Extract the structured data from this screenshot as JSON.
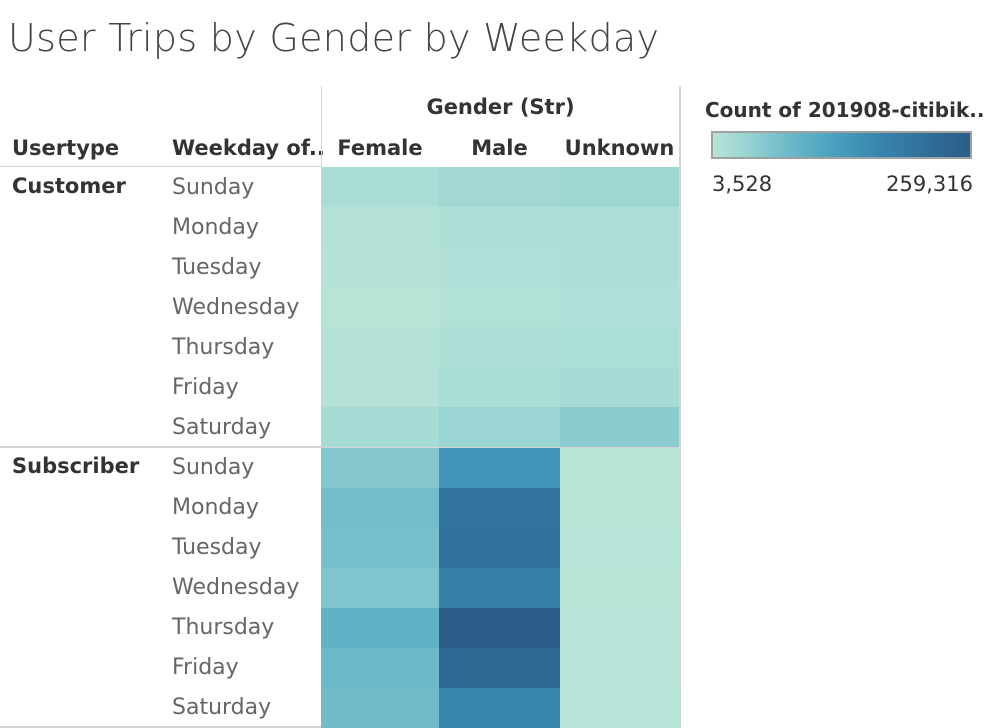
{
  "title": "User Trips by Gender by Weekday",
  "headers": {
    "usertype": "Usertype",
    "weekday": "Weekday of..",
    "gender_group": "Gender (Str)"
  },
  "legend": {
    "title": "Count of 201908-citibik..",
    "min_label": "3,528",
    "max_label": "259,316",
    "color_low": "#b8e4d8",
    "color_high": "#2b5c8a"
  },
  "chart_data": {
    "type": "heatmap",
    "columns": [
      "Female",
      "Male",
      "Unknown"
    ],
    "column_title": "Gender (Str)",
    "row_groups": [
      {
        "usertype": "Customer",
        "weekdays": [
          "Sunday",
          "Monday",
          "Tuesday",
          "Wednesday",
          "Thursday",
          "Friday",
          "Saturday"
        ],
        "values": [
          [
            18000,
            26000,
            32000
          ],
          [
            8000,
            14000,
            16000
          ],
          [
            6000,
            12000,
            14000
          ],
          [
            4000,
            10000,
            12000
          ],
          [
            7000,
            15000,
            17000
          ],
          [
            9000,
            18000,
            22000
          ],
          [
            22000,
            34000,
            48000
          ]
        ]
      },
      {
        "usertype": "Subscriber",
        "weekdays": [
          "Sunday",
          "Monday",
          "Tuesday",
          "Wednesday",
          "Thursday",
          "Friday",
          "Saturday"
        ],
        "values": [
          [
            56000,
            145000,
            3528
          ],
          [
            72000,
            205000,
            4000
          ],
          [
            70000,
            210000,
            4200
          ],
          [
            60000,
            178000,
            3900
          ],
          [
            92000,
            259316,
            5000
          ],
          [
            82000,
            232000,
            4600
          ],
          [
            76000,
            172000,
            4400
          ]
        ]
      }
    ],
    "color_range": [
      3528,
      259316
    ]
  }
}
